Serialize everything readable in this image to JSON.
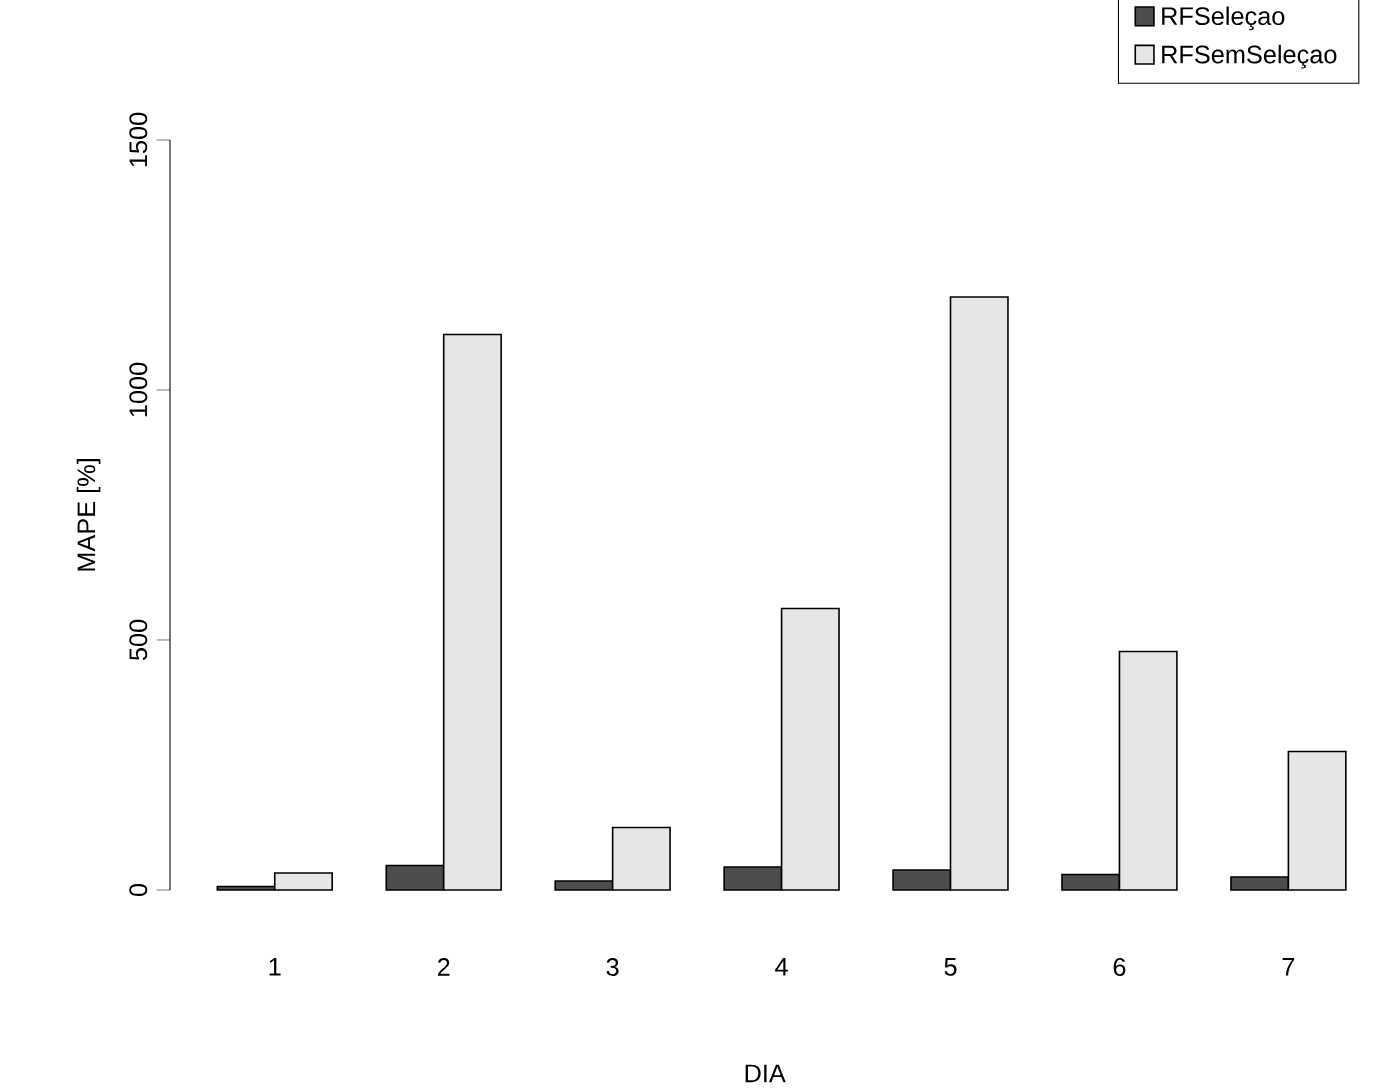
{
  "chart_data": {
    "type": "bar",
    "xlabel": "DIA",
    "ylabel": "MAPE [%]",
    "categories": [
      "1",
      "2",
      "3",
      "4",
      "5",
      "6",
      "7"
    ],
    "series": [
      {
        "name": "RFSeleçao",
        "color": "#4d4d4d",
        "values": [
          7,
          49,
          18,
          46,
          40,
          31,
          26
        ]
      },
      {
        "name": "RFSemSeleçao",
        "color": "#e6e6e6",
        "values": [
          34,
          1111,
          125,
          563,
          1186,
          477,
          277
        ]
      }
    ],
    "ylim": [
      0,
      1500
    ],
    "yticks": [
      0,
      500,
      1000,
      1500
    ],
    "legend": "top right",
    "grid": false
  }
}
